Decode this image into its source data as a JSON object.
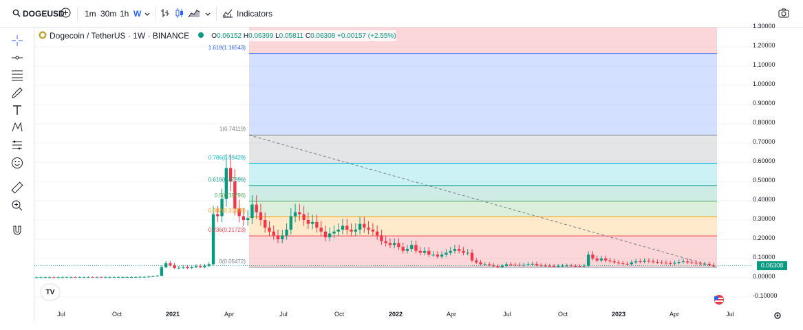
{
  "toolbar": {
    "symbol": "DOGEUSD",
    "intervals": [
      "1m",
      "30m",
      "1h",
      "W"
    ],
    "active_interval": "W",
    "indicators_label": "Indicators"
  },
  "legend": {
    "title": "Dogecoin / TetherUS · 1W · BINANCE",
    "open_label": "O",
    "open": "0.06152",
    "high_label": "H",
    "high": "0.06399",
    "low_label": "L",
    "low": "0.05811",
    "close_label": "C",
    "close": "0.06308",
    "change": "+0.00157 (+2.55%)"
  },
  "price_axis": [
    "1.30000",
    "1.20000",
    "1.10000",
    "1.00000",
    "0.90000",
    "0.80000",
    "0.70000",
    "0.60000",
    "0.50000",
    "0.40000",
    "0.30000",
    "0.20000",
    "0.10000",
    "0.00000",
    "-0.10000"
  ],
  "current_price": "0.06308",
  "time_axis": [
    {
      "label": "Jul",
      "bold": false
    },
    {
      "label": "Oct",
      "bold": false
    },
    {
      "label": "2021",
      "bold": true
    },
    {
      "label": "Apr",
      "bold": false
    },
    {
      "label": "Jul",
      "bold": false
    },
    {
      "label": "Oct",
      "bold": false
    },
    {
      "label": "2022",
      "bold": true
    },
    {
      "label": "Apr",
      "bold": false
    },
    {
      "label": "Jul",
      "bold": false
    },
    {
      "label": "Oct",
      "bold": false
    },
    {
      "label": "2023",
      "bold": true
    },
    {
      "label": "Apr",
      "bold": false
    },
    {
      "label": "Jul",
      "bold": false
    }
  ],
  "fib_levels": [
    {
      "label": "1.618(1.16543)",
      "value": 1.16543,
      "color": "#2962ff"
    },
    {
      "label": "1(0.74119)",
      "value": 0.74119,
      "color": "#787b86"
    },
    {
      "label": "0.786(0.59429)",
      "value": 0.59429,
      "color": "#00bcd4"
    },
    {
      "label": "0.618(0.47896)",
      "value": 0.47896,
      "color": "#089981"
    },
    {
      "label": "0.5(0.39796)",
      "value": 0.39796,
      "color": "#4caf50"
    },
    {
      "label": "0.382(0.31696)",
      "value": 0.31696,
      "color": "#ff9800"
    },
    {
      "label": "0.236(0.21723)",
      "value": 0.21723,
      "color": "#f23645"
    },
    {
      "label": "0(0.05472)",
      "value": 0.05472,
      "color": "#787b86"
    }
  ],
  "colors": {
    "up": "#089981",
    "down": "#f23645",
    "accent": "#2962ff"
  },
  "chart_data": {
    "type": "candlestick",
    "title": "Dogecoin / TetherUS · 1W · BINANCE",
    "ylim": [
      -0.15,
      1.32
    ],
    "weekly_close": [
      0.0025,
      0.0026,
      0.0027,
      0.0027,
      0.0026,
      0.0027,
      0.0028,
      0.0029,
      0.003,
      0.0029,
      0.003,
      0.003,
      0.0031,
      0.003,
      0.003,
      0.0029,
      0.003,
      0.003,
      0.0031,
      0.0032,
      0.0033,
      0.0034,
      0.0036,
      0.004,
      0.0045,
      0.0047,
      0.006,
      0.008,
      0.01,
      0.055,
      0.075,
      0.065,
      0.05,
      0.052,
      0.056,
      0.05,
      0.055,
      0.06,
      0.055,
      0.062,
      0.07,
      0.33,
      0.32,
      0.41,
      0.57,
      0.5,
      0.36,
      0.32,
      0.3,
      0.31,
      0.38,
      0.34,
      0.3,
      0.26,
      0.24,
      0.22,
      0.2,
      0.22,
      0.25,
      0.32,
      0.34,
      0.33,
      0.3,
      0.28,
      0.29,
      0.26,
      0.24,
      0.21,
      0.23,
      0.24,
      0.25,
      0.27,
      0.25,
      0.24,
      0.25,
      0.28,
      0.26,
      0.25,
      0.24,
      0.22,
      0.19,
      0.18,
      0.17,
      0.18,
      0.16,
      0.14,
      0.15,
      0.17,
      0.14,
      0.13,
      0.14,
      0.12,
      0.12,
      0.11,
      0.12,
      0.13,
      0.14,
      0.15,
      0.14,
      0.13,
      0.13,
      0.09,
      0.08,
      0.07,
      0.07,
      0.065,
      0.06,
      0.055,
      0.062,
      0.07,
      0.068,
      0.067,
      0.065,
      0.067,
      0.07,
      0.072,
      0.065,
      0.063,
      0.062,
      0.061,
      0.06,
      0.061,
      0.062,
      0.063,
      0.061,
      0.06,
      0.059,
      0.062,
      0.12,
      0.1,
      0.09,
      0.1,
      0.09,
      0.085,
      0.08,
      0.075,
      0.072,
      0.07,
      0.08,
      0.085,
      0.083,
      0.088,
      0.085,
      0.082,
      0.08,
      0.078,
      0.075,
      0.073,
      0.077,
      0.082,
      0.085,
      0.08,
      0.078,
      0.074,
      0.07,
      0.072,
      0.066,
      0.063
    ]
  }
}
